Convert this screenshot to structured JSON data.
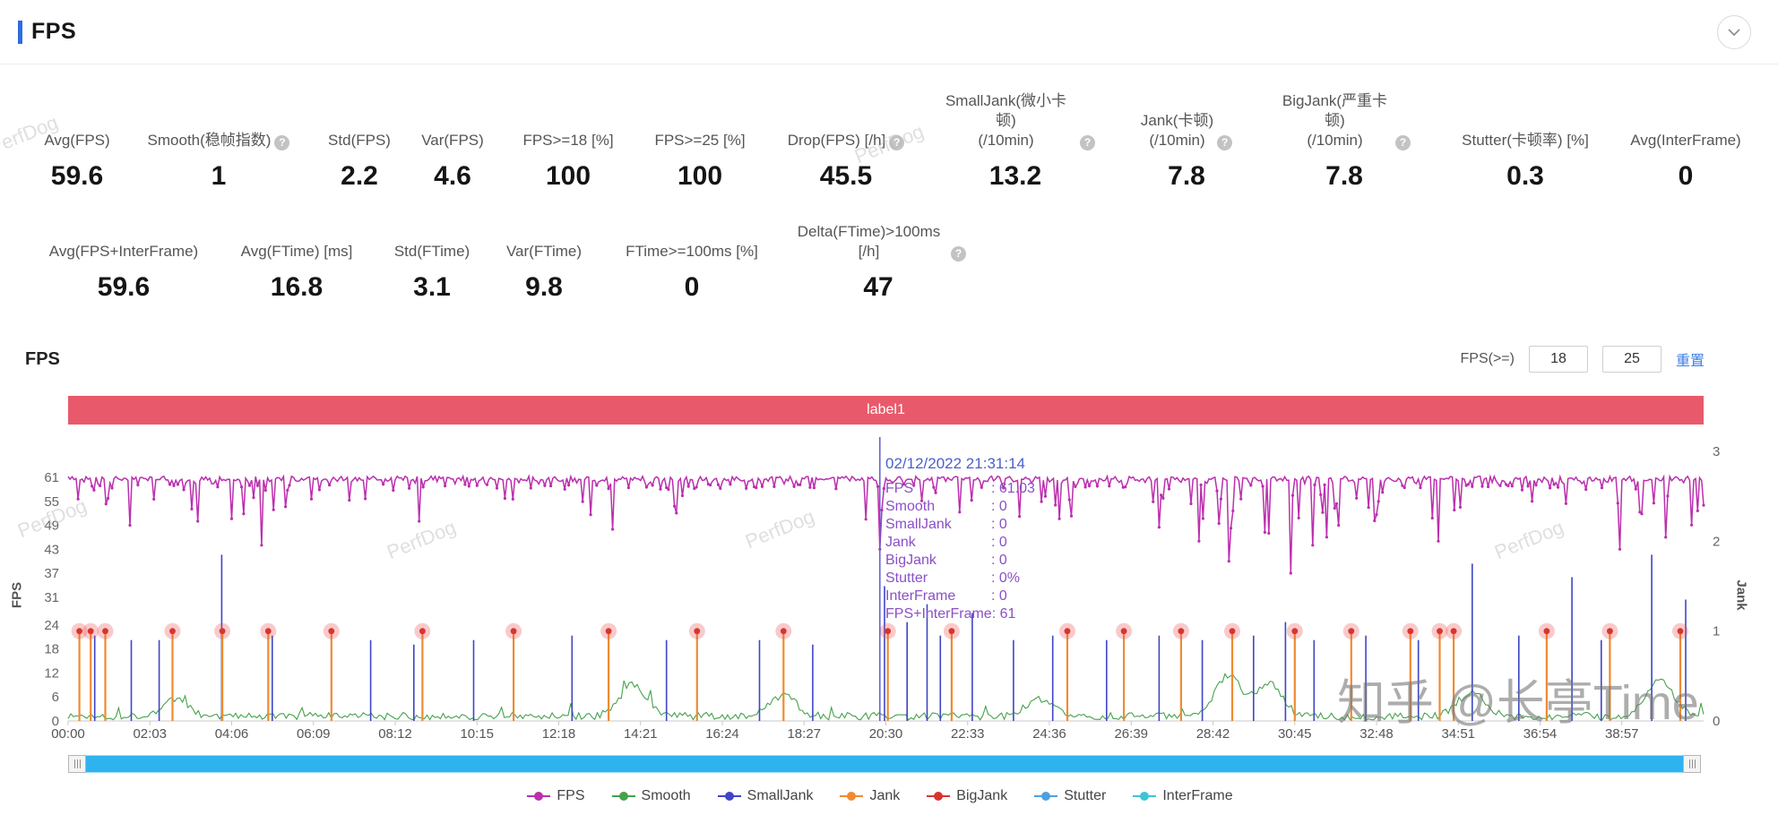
{
  "header": {
    "title": "FPS"
  },
  "stats": {
    "row1": [
      {
        "label": "Avg(FPS)",
        "value": "59.6",
        "help": false
      },
      {
        "label": "Smooth(稳帧指数)",
        "value": "1",
        "help": true
      },
      {
        "label": "Std(FPS)",
        "value": "2.2",
        "help": false
      },
      {
        "label": "Var(FPS)",
        "value": "4.6",
        "help": false
      },
      {
        "label": "FPS>=18 [%]",
        "value": "100",
        "help": false
      },
      {
        "label": "FPS>=25 [%]",
        "value": "100",
        "help": false
      },
      {
        "label": "Drop(FPS) [/h]",
        "value": "45.5",
        "help": true
      },
      {
        "label": "SmallJank(微小卡顿)\n(/10min)",
        "value": "13.2",
        "help": true
      },
      {
        "label": "Jank(卡顿)\n(/10min)",
        "value": "7.8",
        "help": true
      },
      {
        "label": "BigJank(严重卡顿)\n(/10min)",
        "value": "7.8",
        "help": true
      },
      {
        "label": "Stutter(卡顿率) [%]",
        "value": "0.3",
        "help": false
      },
      {
        "label": "Avg(InterFrame)",
        "value": "0",
        "help": false
      }
    ],
    "row2": [
      {
        "label": "Avg(FPS+InterFrame)",
        "value": "59.6",
        "help": false
      },
      {
        "label": "Avg(FTime) [ms]",
        "value": "16.8",
        "help": false
      },
      {
        "label": "Std(FTime)",
        "value": "3.1",
        "help": false
      },
      {
        "label": "Var(FTime)",
        "value": "9.8",
        "help": false
      },
      {
        "label": "FTime>=100ms [%]",
        "value": "0",
        "help": false
      },
      {
        "label": "Delta(FTime)>100ms [/h]",
        "value": "47",
        "help": true
      }
    ]
  },
  "chart_header": {
    "title": "FPS",
    "filter_label": "FPS(>=)",
    "input1": "18",
    "input2": "25",
    "reset_label": "重置"
  },
  "tooltip": {
    "datetime": "02/12/2022 21:31:14",
    "rows": [
      {
        "label": "FPS",
        "value": "61.03"
      },
      {
        "label": "Smooth",
        "value": "0"
      },
      {
        "label": "SmallJank",
        "value": "0"
      },
      {
        "label": "Jank",
        "value": "0"
      },
      {
        "label": "BigJank",
        "value": "0"
      },
      {
        "label": "Stutter",
        "value": "0%"
      },
      {
        "label": "InterFrame",
        "value": "0"
      },
      {
        "label": "FPS+InterFrame",
        "value": "61"
      }
    ]
  },
  "legend": [
    {
      "label": "FPS",
      "color": "#bb2fae"
    },
    {
      "label": "Smooth",
      "color": "#46a24a"
    },
    {
      "label": "SmallJank",
      "color": "#3d46c5"
    },
    {
      "label": "Jank",
      "color": "#ef8b32"
    },
    {
      "label": "BigJank",
      "color": "#d9342f"
    },
    {
      "label": "Stutter",
      "color": "#4f9fe0"
    },
    {
      "label": "InterFrame",
      "color": "#3ec4d6"
    }
  ],
  "watermark": {
    "text": "PerfDog",
    "brand2": "知乎 @长亭Time"
  },
  "chart_data": {
    "type": "line",
    "mark_label": "label1",
    "mark_color": "#e85a6b",
    "x_axis": {
      "ticks": [
        "00:00",
        "02:03",
        "04:06",
        "06:09",
        "08:12",
        "10:15",
        "12:18",
        "14:21",
        "16:24",
        "18:27",
        "20:30",
        "22:33",
        "24:36",
        "26:39",
        "28:42",
        "30:45",
        "32:48",
        "34:51",
        "36:54",
        "38:57"
      ],
      "tick_interval_s": 123,
      "duration_s": 2460
    },
    "y_left": {
      "name": "FPS",
      "ticks": [
        0,
        6,
        12,
        18,
        24,
        31,
        37,
        43,
        49,
        55,
        61
      ],
      "max": 61
    },
    "y_right": {
      "name": "Jank",
      "ticks": [
        0,
        1,
        2,
        3
      ],
      "max": 3
    },
    "cursor_time_s": 1221,
    "series": [
      {
        "name": "FPS",
        "color": "#bb2fae",
        "axis": "left",
        "baseline": 60.4
      },
      {
        "name": "Smooth",
        "color": "#46a24a",
        "axis": "left",
        "baseline": 1
      },
      {
        "name": "SmallJank",
        "color": "#3d46c5",
        "axis": "right"
      },
      {
        "name": "Jank",
        "color": "#ef8b32",
        "axis": "right"
      },
      {
        "name": "BigJank",
        "color": "#d9342f",
        "axis": "right"
      },
      {
        "name": "Stutter",
        "color": "#4f9fe0",
        "axis": "right",
        "baseline": 0
      },
      {
        "name": "InterFrame",
        "color": "#3ec4d6",
        "axis": "right",
        "baseline": 0
      }
    ],
    "fps_dips": [
      [
        94,
        49
      ],
      [
        196,
        50
      ],
      [
        290,
        44
      ],
      [
        529,
        50
      ],
      [
        820,
        48
      ],
      [
        1221,
        43
      ],
      [
        1700,
        45
      ],
      [
        1745,
        40
      ],
      [
        1806,
        47
      ],
      [
        1838,
        37
      ],
      [
        1872,
        44
      ],
      [
        1912,
        49
      ],
      [
        2062,
        45
      ],
      [
        2335,
        43
      ],
      [
        2402,
        46
      ]
    ],
    "smooth_bumps": [
      [
        160,
        4
      ],
      [
        850,
        8
      ],
      [
        1076,
        5
      ],
      [
        1460,
        4
      ],
      [
        1745,
        10
      ],
      [
        1806,
        8
      ],
      [
        2110,
        6
      ],
      [
        2395,
        9
      ]
    ],
    "smalljank_events": [
      [
        40,
        0.95
      ],
      [
        95,
        0.9
      ],
      [
        137,
        0.9
      ],
      [
        231,
        1.85
      ],
      [
        307,
        0.95
      ],
      [
        455,
        0.9
      ],
      [
        520,
        0.85
      ],
      [
        610,
        0.9
      ],
      [
        758,
        0.95
      ],
      [
        900,
        0.9
      ],
      [
        1040,
        0.9
      ],
      [
        1120,
        0.85
      ],
      [
        1228,
        1.5
      ],
      [
        1262,
        1.1
      ],
      [
        1292,
        1.3
      ],
      [
        1312,
        0.95
      ],
      [
        1360,
        1.2
      ],
      [
        1422,
        0.9
      ],
      [
        1481,
        0.95
      ],
      [
        1562,
        0.9
      ],
      [
        1641,
        0.95
      ],
      [
        1706,
        0.9
      ],
      [
        1783,
        0.95
      ],
      [
        1831,
        1.1
      ],
      [
        1874,
        0.9
      ],
      [
        1952,
        0.95
      ],
      [
        2031,
        0.9
      ],
      [
        2112,
        1.75
      ],
      [
        2182,
        0.95
      ],
      [
        2262,
        1.6
      ],
      [
        2306,
        0.9
      ],
      [
        2382,
        1.85
      ],
      [
        2433,
        1.35
      ]
    ],
    "jank_events": [
      17,
      34,
      56,
      157,
      232,
      301,
      396,
      533,
      670,
      813,
      946,
      1076,
      1233,
      1329,
      1503,
      1588,
      1674,
      1751,
      1845,
      1930,
      2019,
      2063,
      2084,
      2224,
      2319,
      2425
    ],
    "bigjank_events": [
      17,
      34,
      56,
      157,
      232,
      301,
      396,
      533,
      670,
      813,
      946,
      1076,
      1233,
      1329,
      1503,
      1588,
      1674,
      1751,
      1845,
      1930,
      2019,
      2063,
      2084,
      2224,
      2319,
      2425
    ]
  }
}
